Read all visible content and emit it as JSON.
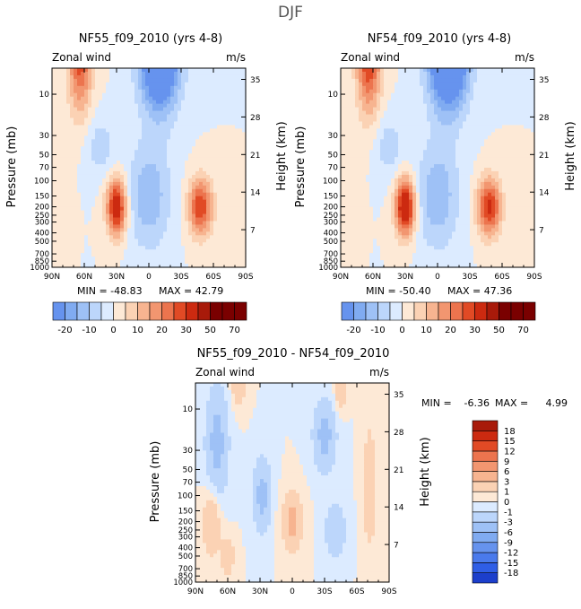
{
  "page_title": "DJF",
  "chart_data": [
    {
      "type": "contour",
      "title": "NF55_f09_2010 (yrs 4-8)",
      "variable": "Zonal wind",
      "units": "m/s",
      "xlabel": "",
      "ylabel_left": "Pressure (mb)",
      "ylabel_right": "Height (km)",
      "x_ticks": [
        "90N",
        "60N",
        "30N",
        "0",
        "30S",
        "60S",
        "90S"
      ],
      "p_ticks": [
        "10",
        "30",
        "50",
        "70",
        "100",
        "150",
        "200",
        "250",
        "300",
        "400",
        "500",
        "700",
        "850",
        "1000"
      ],
      "p_values": [
        10,
        30,
        50,
        70,
        100,
        150,
        200,
        250,
        300,
        400,
        500,
        700,
        850,
        1000
      ],
      "z_ticks": [
        "35",
        "28",
        "21",
        "14",
        "7"
      ],
      "z_values": [
        35,
        28,
        21,
        14,
        7
      ],
      "min_label": "MIN = -48.83",
      "max_label": "MAX = 42.79",
      "min": -48.83,
      "max": 42.79,
      "colorbar_labels": [
        "-20",
        "-10",
        "0",
        "10",
        "20",
        "30",
        "50",
        "70"
      ],
      "features": [
        {
          "lat": 64,
          "p": 3,
          "amp": 30,
          "wlat": 11,
          "wlog": 1.6
        },
        {
          "lat": -10,
          "p": 3,
          "amp": -48,
          "wlat": 18,
          "wlog": 1.5
        },
        {
          "lat": 30,
          "p": 200,
          "amp": 38,
          "wlat": 9,
          "wlog": 0.75
        },
        {
          "lat": -48,
          "p": 200,
          "amp": 30,
          "wlat": 11,
          "wlog": 0.75
        },
        {
          "lat": 0,
          "p": 150,
          "amp": -14,
          "wlat": 20,
          "wlog": 1.4
        },
        {
          "lat": 45,
          "p": 40,
          "amp": -8,
          "wlat": 14,
          "wlog": 0.8
        }
      ]
    },
    {
      "type": "contour",
      "title": "NF54_f09_2010 (yrs 4-8)",
      "variable": "Zonal wind",
      "units": "m/s",
      "xlabel": "",
      "ylabel_left": "Pressure (mb)",
      "ylabel_right": "Height (km)",
      "x_ticks": [
        "90N",
        "60N",
        "30N",
        "0",
        "30S",
        "60S",
        "90S"
      ],
      "p_ticks": [
        "10",
        "30",
        "50",
        "70",
        "100",
        "150",
        "200",
        "250",
        "300",
        "400",
        "500",
        "700",
        "850",
        "1000"
      ],
      "p_values": [
        10,
        30,
        50,
        70,
        100,
        150,
        200,
        250,
        300,
        400,
        500,
        700,
        850,
        1000
      ],
      "z_ticks": [
        "35",
        "28",
        "21",
        "14",
        "7"
      ],
      "z_values": [
        35,
        28,
        21,
        14,
        7
      ],
      "min_label": "MIN = -50.40",
      "max_label": "MAX = 47.36",
      "min": -50.4,
      "max": 47.36,
      "colorbar_labels": [
        "-20",
        "-10",
        "0",
        "10",
        "20",
        "30",
        "50",
        "70"
      ],
      "features": [
        {
          "lat": 64,
          "p": 3,
          "amp": 34,
          "wlat": 11,
          "wlog": 1.6
        },
        {
          "lat": -10,
          "p": 3,
          "amp": -50,
          "wlat": 18,
          "wlog": 1.5
        },
        {
          "lat": 30,
          "p": 200,
          "amp": 42,
          "wlat": 9,
          "wlog": 0.75
        },
        {
          "lat": -48,
          "p": 200,
          "amp": 32,
          "wlat": 11,
          "wlog": 0.75
        },
        {
          "lat": 0,
          "p": 150,
          "amp": -14,
          "wlat": 20,
          "wlog": 1.4
        },
        {
          "lat": 45,
          "p": 40,
          "amp": -8,
          "wlat": 14,
          "wlog": 0.8
        }
      ]
    },
    {
      "type": "contour",
      "title": "NF55_f09_2010 - NF54_f09_2010",
      "variable": "Zonal wind",
      "units": "m/s",
      "xlabel": "",
      "ylabel_left": "Pressure (mb)",
      "ylabel_right": "Height (km)",
      "x_ticks": [
        "90N",
        "60N",
        "30N",
        "0",
        "30S",
        "60S",
        "90S"
      ],
      "p_ticks": [
        "10",
        "30",
        "50",
        "70",
        "100",
        "150",
        "200",
        "250",
        "300",
        "400",
        "500",
        "700",
        "850",
        "1000"
      ],
      "p_values": [
        10,
        30,
        50,
        70,
        100,
        150,
        200,
        250,
        300,
        400,
        500,
        700,
        850,
        1000
      ],
      "z_ticks": [
        "35",
        "28",
        "21",
        "14",
        "7"
      ],
      "z_values": [
        35,
        28,
        21,
        14,
        7
      ],
      "min_label": "MIN =",
      "min_value": "-6.36",
      "max_label": "MAX =",
      "max_value": "4.99",
      "min": -6.36,
      "max": 4.99,
      "colorbar_labels": [
        "18",
        "15",
        "12",
        "9",
        "6",
        "3",
        "1",
        "0",
        "-1",
        "-3",
        "-6",
        "-9",
        "-12",
        "-15",
        "-18"
      ],
      "features": [
        {
          "lat": 70,
          "p": 25,
          "amp": -4,
          "wlat": 10,
          "wlog": 1.4
        },
        {
          "lat": 50,
          "p": 5,
          "amp": 3,
          "wlat": 6,
          "wlog": 0.6
        },
        {
          "lat": 75,
          "p": 200,
          "amp": 3,
          "wlat": 8,
          "wlog": 0.9
        },
        {
          "lat": 28,
          "p": 100,
          "amp": -4,
          "wlat": 8,
          "wlog": 0.9
        },
        {
          "lat": 0,
          "p": 200,
          "amp": 4,
          "wlat": 9,
          "wlog": 0.7
        },
        {
          "lat": -30,
          "p": 20,
          "amp": -4,
          "wlat": 10,
          "wlog": 0.9
        },
        {
          "lat": -72,
          "p": 80,
          "amp": 2.5,
          "wlat": 6,
          "wlog": 1.6
        },
        {
          "lat": -40,
          "p": 250,
          "amp": -3,
          "wlat": 9,
          "wlog": 0.7
        },
        {
          "lat": -45,
          "p": 6,
          "amp": 3,
          "wlat": 5,
          "wlog": 0.5
        },
        {
          "lat": 60,
          "p": 500,
          "amp": 2.5,
          "wlat": 6,
          "wlog": 0.5
        }
      ]
    }
  ],
  "colors": {
    "warm": [
      "#FDE9D6",
      "#FBD2B4",
      "#F7B490",
      "#F29670",
      "#EC744E",
      "#E14A25",
      "#CC2A10",
      "#A81A0A",
      "#7A0000"
    ],
    "cool": [
      "#DCEBFF",
      "#BCD6FB",
      "#9EC1F6",
      "#80ABF1",
      "#6693EE",
      "#4A7AEC",
      "#2F5EE6",
      "#1C3FCC",
      "#0E23A8",
      "#00137E"
    ]
  }
}
